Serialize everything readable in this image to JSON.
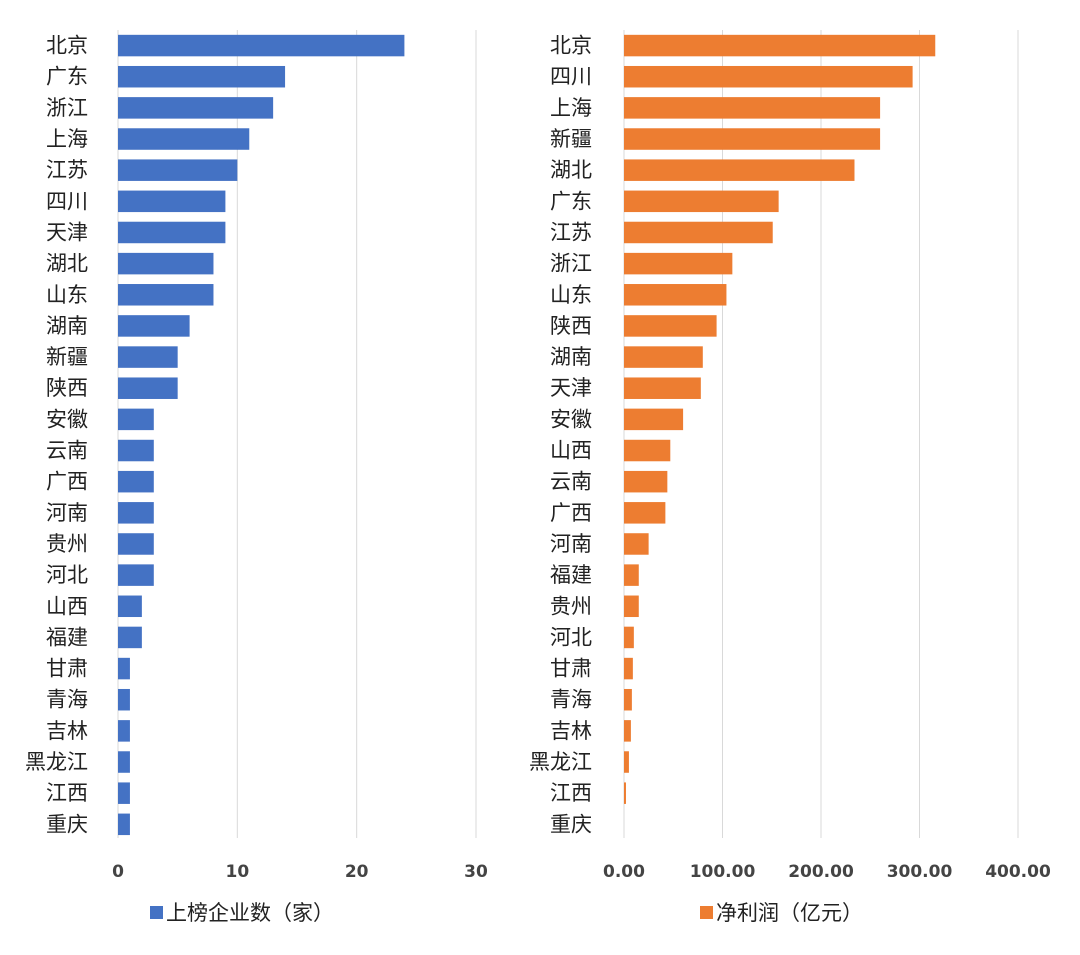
{
  "chart_data": [
    {
      "type": "bar",
      "orientation": "horizontal",
      "categories": [
        "北京",
        "广东",
        "浙江",
        "上海",
        "江苏",
        "四川",
        "天津",
        "湖北",
        "山东",
        "湖南",
        "新疆",
        "陕西",
        "安徽",
        "云南",
        "广西",
        "河南",
        "贵州",
        "河北",
        "山西",
        "福建",
        "甘肃",
        "青海",
        "吉林",
        "黑龙江",
        "江西",
        "重庆"
      ],
      "series": [
        {
          "name": "上榜企业数（家）",
          "color": "#4472c4",
          "values": [
            24,
            14,
            13,
            11,
            10,
            9,
            9,
            8,
            8,
            6,
            5,
            5,
            3,
            3,
            3,
            3,
            3,
            3,
            2,
            2,
            1,
            1,
            1,
            1,
            1,
            1
          ]
        }
      ],
      "xlim": [
        0,
        30
      ],
      "ticks": [
        "0",
        "10",
        "20",
        "30"
      ],
      "tick_values": [
        0,
        10,
        20,
        30
      ],
      "legend": "上榜企业数（家）",
      "grid": true
    },
    {
      "type": "bar",
      "orientation": "horizontal",
      "categories": [
        "北京",
        "四川",
        "上海",
        "新疆",
        "湖北",
        "广东",
        "江苏",
        "浙江",
        "山东",
        "陕西",
        "湖南",
        "天津",
        "安徽",
        "山西",
        "云南",
        "广西",
        "河南",
        "福建",
        "贵州",
        "河北",
        "甘肃",
        "青海",
        "吉林",
        "黑龙江",
        "江西",
        "重庆"
      ],
      "series": [
        {
          "name": "净利润（亿元）",
          "color": "#ed7d31",
          "values": [
            316,
            293,
            260,
            260,
            234,
            157,
            151,
            110,
            104,
            94,
            80,
            78,
            60,
            47,
            44,
            42,
            25,
            15,
            15,
            10,
            9,
            8,
            7,
            5,
            2,
            0
          ]
        }
      ],
      "xlim": [
        0,
        400
      ],
      "ticks": [
        "0.00",
        "100.00",
        "200.00",
        "300.00",
        "400.00"
      ],
      "tick_values": [
        0,
        100,
        200,
        300,
        400
      ],
      "legend": "净利润（亿元）",
      "grid": true
    }
  ]
}
